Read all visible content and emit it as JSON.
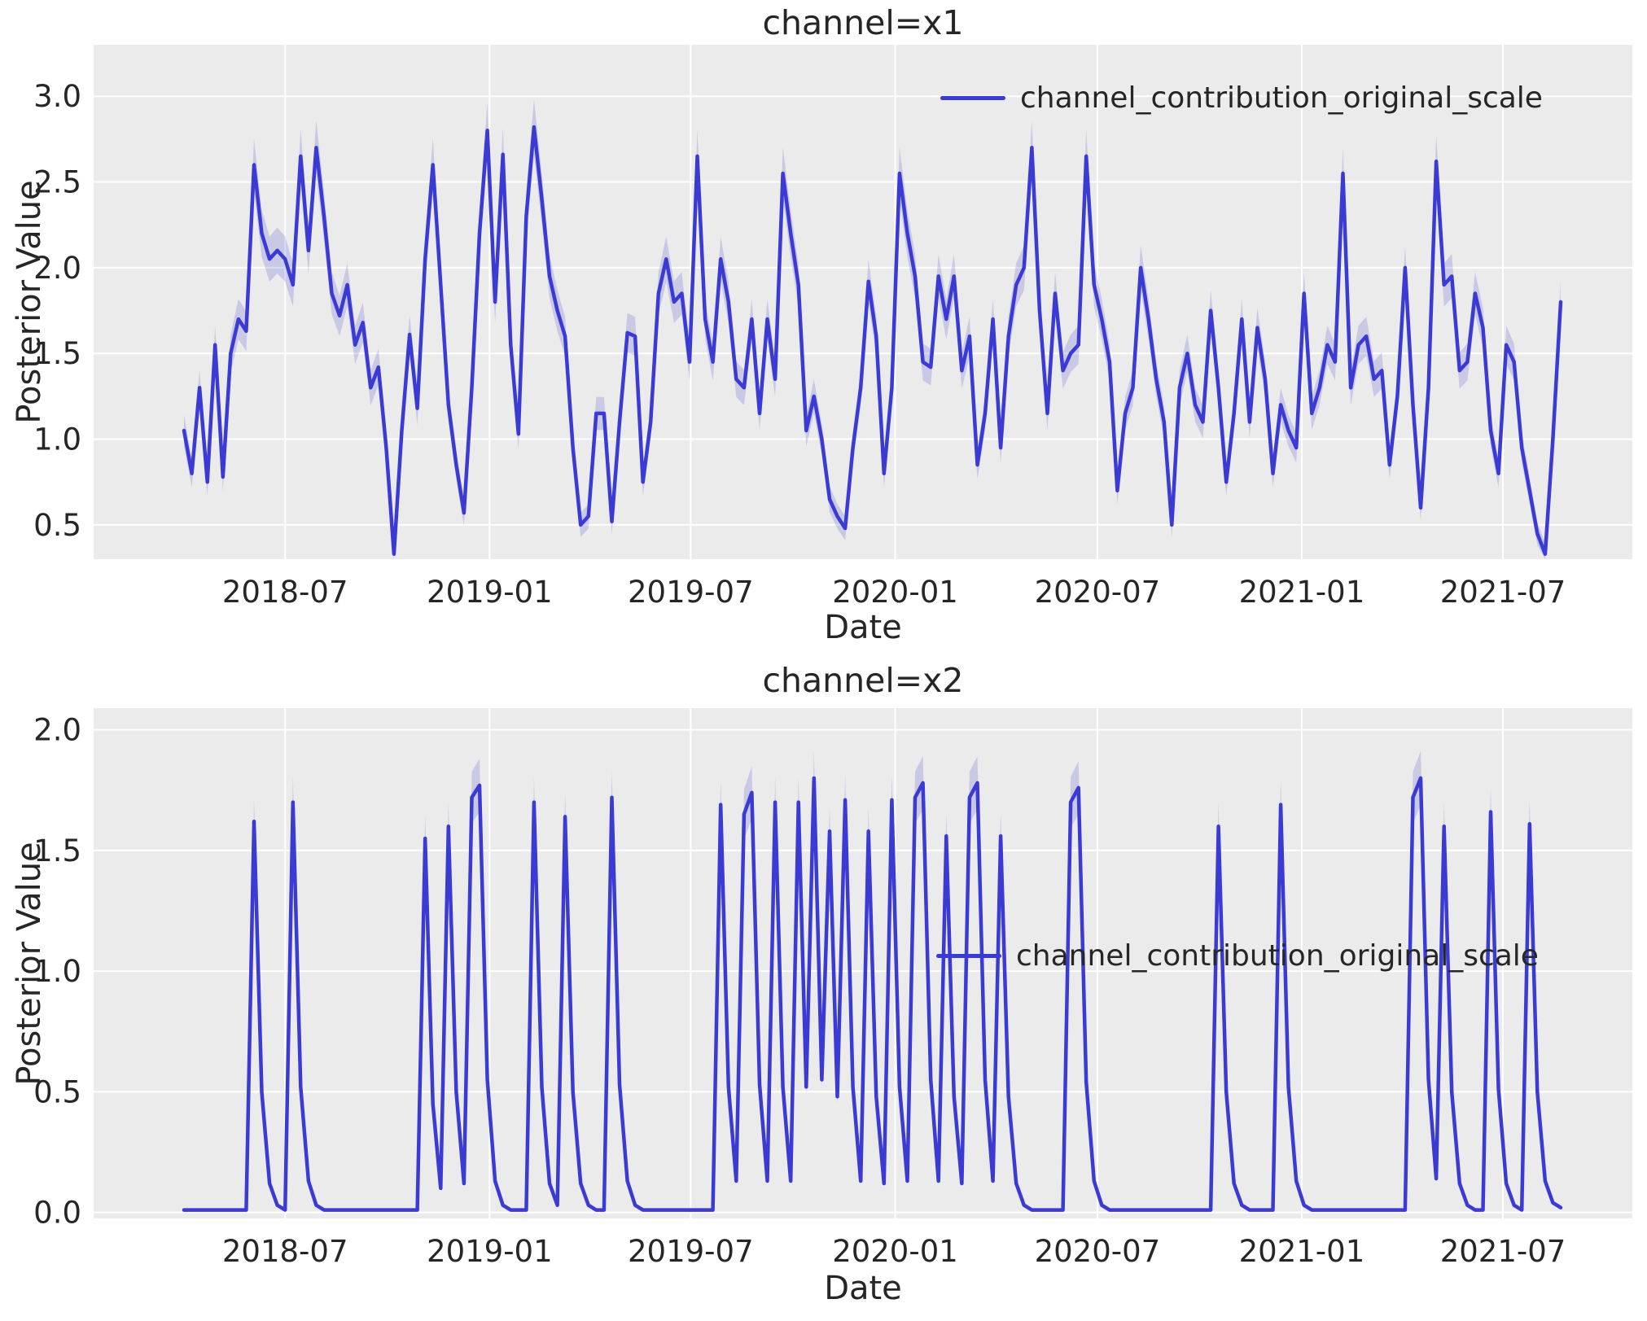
{
  "figure": {
    "background": "#ffffff",
    "panel_background": "#ebebeb",
    "grid_color": "#ffffff",
    "line_color": "#3b3bd4",
    "band_color": "rgba(80,80,215,0.22)",
    "text_color": "#262626"
  },
  "chart_data": [
    {
      "type": "line",
      "title": "channel=x1",
      "xlabel": "Date",
      "ylabel": "Posterior Value",
      "legend": "channel_contribution_original_scale",
      "legend_position": "upper right",
      "grid": true,
      "x_freq": "weekly",
      "x_ticks": [
        "2018-07",
        "2019-01",
        "2019-07",
        "2020-01",
        "2020-07",
        "2021-01",
        "2021-07"
      ],
      "x_tick_weeks": [
        13,
        39.29,
        65.14,
        91.43,
        117.43,
        143.71,
        169.57
      ],
      "ylim": [
        0.3,
        3.3
      ],
      "yticks": [
        0.5,
        1.0,
        1.5,
        2.0,
        2.5,
        3.0
      ],
      "ci_base": 0.05,
      "ci_scale": 0.04,
      "dates": [
        "2018-04-01",
        "2018-04-08",
        "2018-04-15",
        "2018-04-22",
        "2018-04-29",
        "2018-05-06",
        "2018-05-13",
        "2018-05-20",
        "2018-05-27",
        "2018-06-03",
        "2018-06-10",
        "2018-06-17",
        "2018-06-24",
        "2018-07-01",
        "2018-07-08",
        "2018-07-15",
        "2018-07-22",
        "2018-07-29",
        "2018-08-05",
        "2018-08-12",
        "2018-08-19",
        "2018-08-26",
        "2018-09-02",
        "2018-09-09",
        "2018-09-16",
        "2018-09-23",
        "2018-09-30",
        "2018-10-07",
        "2018-10-14",
        "2018-10-21",
        "2018-10-28",
        "2018-11-04",
        "2018-11-11",
        "2018-11-18",
        "2018-11-25",
        "2018-12-02",
        "2018-12-09",
        "2018-12-16",
        "2018-12-23",
        "2018-12-30",
        "2019-01-06",
        "2019-01-13",
        "2019-01-20",
        "2019-01-27",
        "2019-02-03",
        "2019-02-10",
        "2019-02-17",
        "2019-02-24",
        "2019-03-03",
        "2019-03-10",
        "2019-03-17",
        "2019-03-24",
        "2019-03-31",
        "2019-04-07",
        "2019-04-14",
        "2019-04-21",
        "2019-04-28",
        "2019-05-05",
        "2019-05-12",
        "2019-05-19",
        "2019-05-26",
        "2019-06-02",
        "2019-06-09",
        "2019-06-16",
        "2019-06-23",
        "2019-06-30",
        "2019-07-07",
        "2019-07-14",
        "2019-07-21",
        "2019-07-28",
        "2019-08-04",
        "2019-08-11",
        "2019-08-18",
        "2019-08-25",
        "2019-09-01",
        "2019-09-08",
        "2019-09-15",
        "2019-09-22",
        "2019-09-29",
        "2019-10-06",
        "2019-10-13",
        "2019-10-20",
        "2019-10-27",
        "2019-11-03",
        "2019-11-10",
        "2019-11-17",
        "2019-11-24",
        "2019-12-01",
        "2019-12-08",
        "2019-12-15",
        "2019-12-22",
        "2019-12-29",
        "2020-01-05",
        "2020-01-12",
        "2020-01-19",
        "2020-01-26",
        "2020-02-02",
        "2020-02-09",
        "2020-02-16",
        "2020-02-23",
        "2020-03-01",
        "2020-03-08",
        "2020-03-15",
        "2020-03-22",
        "2020-03-29",
        "2020-04-05",
        "2020-04-12",
        "2020-04-19",
        "2020-04-26",
        "2020-05-03",
        "2020-05-10",
        "2020-05-17",
        "2020-05-24",
        "2020-05-31",
        "2020-06-07",
        "2020-06-14",
        "2020-06-21",
        "2020-06-28",
        "2020-07-05",
        "2020-07-12",
        "2020-07-19",
        "2020-07-26",
        "2020-08-02",
        "2020-08-09",
        "2020-08-16",
        "2020-08-23",
        "2020-08-30",
        "2020-09-06",
        "2020-09-13",
        "2020-09-20",
        "2020-09-27",
        "2020-10-04",
        "2020-10-11",
        "2020-10-18",
        "2020-10-25",
        "2020-11-01",
        "2020-11-08",
        "2020-11-15",
        "2020-11-22",
        "2020-11-29",
        "2020-12-06",
        "2020-12-13",
        "2020-12-20",
        "2020-12-27",
        "2021-01-03",
        "2021-01-10",
        "2021-01-17",
        "2021-01-24",
        "2021-01-31",
        "2021-02-07",
        "2021-02-14",
        "2021-02-21",
        "2021-02-28",
        "2021-03-07",
        "2021-03-14",
        "2021-03-21",
        "2021-03-28",
        "2021-04-04",
        "2021-04-11",
        "2021-04-18",
        "2021-04-25",
        "2021-05-02",
        "2021-05-09",
        "2021-05-16",
        "2021-05-23",
        "2021-05-30",
        "2021-06-06",
        "2021-06-13",
        "2021-06-20",
        "2021-06-27",
        "2021-07-04",
        "2021-07-11",
        "2021-07-18",
        "2021-07-25",
        "2021-08-01",
        "2021-08-08",
        "2021-08-15",
        "2021-08-22"
      ],
      "values": [
        1.05,
        0.8,
        1.3,
        0.75,
        1.55,
        0.78,
        1.5,
        1.7,
        1.63,
        2.6,
        2.2,
        2.05,
        2.1,
        2.05,
        1.9,
        2.65,
        2.1,
        2.7,
        2.3,
        1.85,
        1.72,
        1.9,
        1.55,
        1.68,
        1.3,
        1.42,
        0.95,
        0.33,
        1.05,
        1.61,
        1.18,
        2.05,
        2.6,
        1.9,
        1.2,
        0.85,
        0.57,
        1.3,
        2.2,
        2.8,
        1.8,
        2.66,
        1.55,
        1.03,
        2.3,
        2.82,
        2.4,
        1.95,
        1.75,
        1.6,
        0.95,
        0.5,
        0.55,
        1.15,
        1.15,
        0.52,
        1.1,
        1.62,
        1.6,
        0.75,
        1.1,
        1.85,
        2.05,
        1.8,
        1.85,
        1.45,
        2.65,
        1.7,
        1.45,
        2.05,
        1.8,
        1.35,
        1.3,
        1.7,
        1.15,
        1.7,
        1.35,
        2.55,
        2.2,
        1.9,
        1.05,
        1.25,
        1.0,
        0.65,
        0.55,
        0.48,
        0.95,
        1.3,
        1.92,
        1.6,
        0.8,
        1.3,
        2.55,
        2.2,
        1.95,
        1.45,
        1.42,
        1.95,
        1.7,
        1.95,
        1.4,
        1.6,
        0.85,
        1.15,
        1.7,
        0.95,
        1.6,
        1.9,
        2.0,
        2.7,
        1.75,
        1.15,
        1.85,
        1.4,
        1.5,
        1.55,
        2.65,
        1.9,
        1.7,
        1.45,
        0.7,
        1.15,
        1.3,
        2.0,
        1.7,
        1.35,
        1.1,
        0.5,
        1.3,
        1.5,
        1.2,
        1.1,
        1.75,
        1.3,
        0.75,
        1.15,
        1.7,
        1.1,
        1.65,
        1.35,
        0.8,
        1.2,
        1.05,
        0.95,
        1.85,
        1.15,
        1.3,
        1.55,
        1.45,
        2.55,
        1.3,
        1.55,
        1.6,
        1.35,
        1.4,
        0.85,
        1.25,
        2.0,
        1.2,
        0.6,
        1.3,
        2.62,
        1.9,
        1.95,
        1.4,
        1.45,
        1.85,
        1.65,
        1.05,
        0.8,
        1.55,
        1.45,
        0.95,
        0.7,
        0.45,
        0.33,
        1.0,
        1.8
      ]
    },
    {
      "type": "line",
      "title": "channel=x2",
      "xlabel": "Date",
      "ylabel": "Posterior Value",
      "legend": "channel_contribution_original_scale",
      "legend_position": "center right",
      "grid": true,
      "x_freq": "weekly",
      "x_ticks": [
        "2018-07",
        "2019-01",
        "2019-07",
        "2020-01",
        "2020-07",
        "2021-01",
        "2021-07"
      ],
      "x_tick_weeks": [
        13,
        39.29,
        65.14,
        91.43,
        117.43,
        143.71,
        169.57
      ],
      "ylim": [
        -0.025,
        2.09
      ],
      "yticks": [
        0.0,
        0.5,
        1.0,
        1.5,
        2.0
      ],
      "ci_base": 0.004,
      "ci_scale": 0.06,
      "values": [
        0.01,
        0.01,
        0.01,
        0.01,
        0.01,
        0.01,
        0.01,
        0.01,
        0.01,
        1.62,
        0.5,
        0.12,
        0.03,
        0.01,
        1.7,
        0.52,
        0.13,
        0.03,
        0.01,
        0.01,
        0.01,
        0.01,
        0.01,
        0.01,
        0.01,
        0.01,
        0.01,
        0.01,
        0.01,
        0.01,
        0.01,
        1.55,
        0.45,
        0.1,
        1.6,
        0.5,
        0.12,
        1.72,
        1.77,
        0.55,
        0.13,
        0.03,
        0.01,
        0.01,
        0.01,
        1.7,
        0.52,
        0.12,
        0.03,
        1.64,
        0.5,
        0.12,
        0.03,
        0.01,
        0.01,
        1.72,
        0.53,
        0.13,
        0.03,
        0.01,
        0.01,
        0.01,
        0.01,
        0.01,
        0.01,
        0.01,
        0.01,
        0.01,
        0.01,
        1.69,
        0.52,
        0.13,
        1.65,
        1.74,
        0.53,
        0.13,
        1.7,
        0.52,
        0.13,
        1.7,
        0.52,
        1.8,
        0.55,
        1.58,
        0.48,
        1.71,
        0.52,
        0.13,
        1.58,
        0.48,
        0.12,
        1.71,
        0.52,
        0.13,
        1.72,
        1.78,
        0.55,
        0.13,
        1.56,
        0.48,
        0.12,
        1.72,
        1.78,
        0.55,
        0.13,
        1.56,
        0.48,
        0.12,
        0.03,
        0.01,
        0.01,
        0.01,
        0.01,
        0.01,
        1.7,
        1.76,
        0.54,
        0.13,
        0.03,
        0.01,
        0.01,
        0.01,
        0.01,
        0.01,
        0.01,
        0.01,
        0.01,
        0.01,
        0.01,
        0.01,
        0.01,
        0.01,
        0.01,
        1.6,
        0.5,
        0.12,
        0.03,
        0.01,
        0.01,
        0.01,
        0.01,
        1.69,
        0.52,
        0.13,
        0.03,
        0.01,
        0.01,
        0.01,
        0.01,
        0.01,
        0.01,
        0.01,
        0.01,
        0.01,
        0.01,
        0.01,
        0.01,
        0.01,
        1.72,
        1.8,
        0.55,
        0.14,
        1.6,
        0.5,
        0.12,
        0.03,
        0.01,
        0.01,
        1.66,
        0.51,
        0.12,
        0.03,
        0.01,
        1.61,
        0.5,
        0.13,
        0.04,
        0.02
      ]
    }
  ]
}
